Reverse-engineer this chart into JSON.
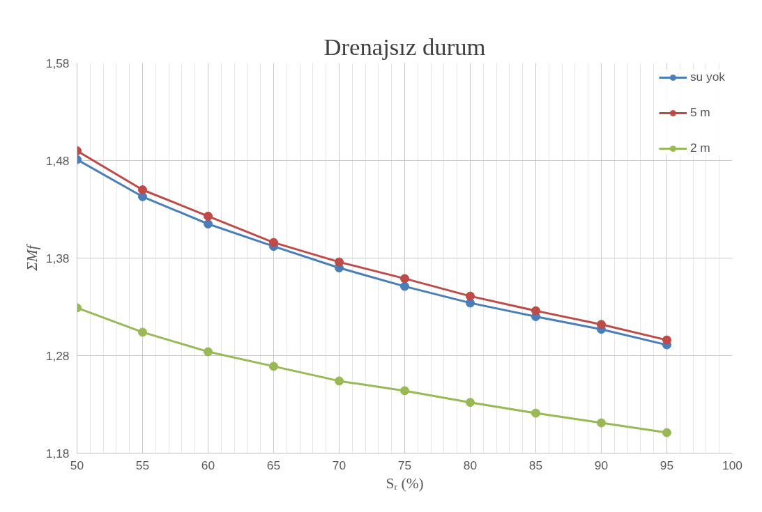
{
  "chart_data": {
    "type": "line",
    "title": "Drenajsız durum",
    "xlabel": "Sᵣ (%)",
    "ylabel": "ΣMf",
    "x": [
      50,
      55,
      60,
      65,
      70,
      75,
      80,
      85,
      90,
      95
    ],
    "series": [
      {
        "name": "su yok",
        "color": "#4a7ebb",
        "values": [
          1.481,
          1.443,
          1.415,
          1.392,
          1.37,
          1.351,
          1.334,
          1.32,
          1.307,
          1.291
        ]
      },
      {
        "name": "5 m",
        "color": "#be4b48",
        "values": [
          1.49,
          1.45,
          1.423,
          1.396,
          1.376,
          1.359,
          1.341,
          1.326,
          1.312,
          1.296
        ]
      },
      {
        "name": "2 m",
        "color": "#98b954",
        "values": [
          1.329,
          1.304,
          1.284,
          1.269,
          1.254,
          1.244,
          1.232,
          1.221,
          1.211,
          1.201
        ]
      }
    ],
    "xlim": [
      50,
      100
    ],
    "xticks": [
      50,
      55,
      60,
      65,
      70,
      75,
      80,
      85,
      90,
      95,
      100
    ],
    "ylim": [
      1.18,
      1.58
    ],
    "yticks": [
      {
        "value": 1.18,
        "label": "1,18"
      },
      {
        "value": 1.28,
        "label": "1,28"
      },
      {
        "value": 1.38,
        "label": "1,38"
      },
      {
        "value": 1.48,
        "label": "1,48"
      },
      {
        "value": 1.58,
        "label": "1,58"
      }
    ],
    "grid": true,
    "legend": "top right",
    "marker": "circle",
    "line_style": "solid"
  }
}
